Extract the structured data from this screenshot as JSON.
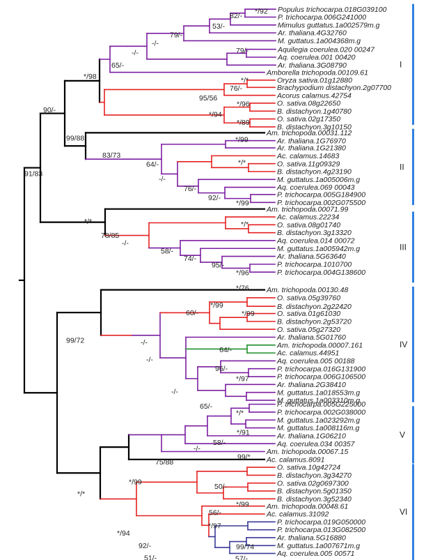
{
  "colors": {
    "backbone": "#000000",
    "eudicot": "#7b1fa2",
    "monocot": "#e52222",
    "amborella": "#1f8f2a",
    "sister": "#3a3a9a",
    "group_bar": "#2f7fe0"
  },
  "leaves": [
    {
      "id": "l0",
      "label": "Populus trichocarpa.018G039100"
    },
    {
      "id": "l1",
      "label": "P. trichocarpa.006G241000"
    },
    {
      "id": "l2",
      "label": "Mimulus guttatus.1a002579m.g"
    },
    {
      "id": "l3",
      "label": "Ar. thaliana.4G32760"
    },
    {
      "id": "l4",
      "label": "M. guttatus.1a004368m.g"
    },
    {
      "id": "l5",
      "label": "Aquilegia coerulea.020 00247"
    },
    {
      "id": "l6",
      "label": "Aq. coerulea.001 00420"
    },
    {
      "id": "l7",
      "label": "Ar. thaliana.3G08790"
    },
    {
      "id": "l8",
      "label": "Amborella trichopoda.00109.61"
    },
    {
      "id": "l9",
      "label": "Oryza sativa.01g12880"
    },
    {
      "id": "l10",
      "label": "Brachypodium distachyon.2g07700"
    },
    {
      "id": "l11",
      "label": "Acorus calamus.42754"
    },
    {
      "id": "l12",
      "label": "O. sativa.08g22650"
    },
    {
      "id": "l13",
      "label": "B. distachyon.1g40780"
    },
    {
      "id": "l14",
      "label": "O. sativa.02g17350"
    },
    {
      "id": "l15",
      "label": "B. distachyon.3g10150"
    },
    {
      "id": "l16",
      "label": "Am. trichopoda.00031.112"
    },
    {
      "id": "l17",
      "label": "Ar. thaliana.1G76970"
    },
    {
      "id": "l18",
      "label": "Ar. thaliana.1G21380"
    },
    {
      "id": "l19",
      "label": "Ac. calamus.14683"
    },
    {
      "id": "l20",
      "label": "O. sativa.11g09329"
    },
    {
      "id": "l21",
      "label": "B. distachyon.4g23190"
    },
    {
      "id": "l22",
      "label": "M. guttatus.1a005006m.g"
    },
    {
      "id": "l23",
      "label": "Aq. coerulea.069 00043"
    },
    {
      "id": "l24",
      "label": "P. trichocarpa.005G184900"
    },
    {
      "id": "l25",
      "label": "P. trichocarpa.002G075500"
    },
    {
      "id": "l26",
      "label": "Am. trichopoda.00071.99"
    },
    {
      "id": "l27",
      "label": "Ac. calamus.22234"
    },
    {
      "id": "l28",
      "label": "O. sativa.08g01740"
    },
    {
      "id": "l29",
      "label": "B. distachyon.3g13320"
    },
    {
      "id": "l30",
      "label": "Aq. coerulea.014 00072"
    },
    {
      "id": "l31",
      "label": "M. guttatus.1a005942m.g"
    },
    {
      "id": "l32",
      "label": "Ar. thaliana.5G63640"
    },
    {
      "id": "l33",
      "label": "P. trichocarpa.1010700"
    },
    {
      "id": "l34",
      "label": "P. trichocarpa.004G138600"
    },
    {
      "id": "l35",
      "label": "Am. trichopoda.00130.48"
    },
    {
      "id": "l36",
      "label": "O. sativa.05g39760"
    },
    {
      "id": "l37",
      "label": "B. distachyon.2g22420"
    },
    {
      "id": "l38",
      "label": "O. sativa.01g61030"
    },
    {
      "id": "l39",
      "label": "B. distachyon.2g53720"
    },
    {
      "id": "l40",
      "label": "O. sativa.05g27320"
    },
    {
      "id": "l41",
      "label": "Ar. thaliana.5G01760"
    },
    {
      "id": "l42",
      "label": "Am. trichopoda.00007.161"
    },
    {
      "id": "l43",
      "label": "Ac. calamus.44951"
    },
    {
      "id": "l44",
      "label": "Aq. coerulea.005 00188"
    },
    {
      "id": "l45",
      "label": "P. trichocarpa.016G131900"
    },
    {
      "id": "l46",
      "label": "P. trichocarpa.006G106500"
    },
    {
      "id": "l47",
      "label": "Ar. thaliana.2G38410"
    },
    {
      "id": "l48",
      "label": "M. guttatus.1a018553m.g"
    },
    {
      "id": "l49",
      "label": "M. guttatus.1a003310m.g"
    },
    {
      "id": "l50",
      "label": "P. trichocarpa.005G225000"
    },
    {
      "id": "l51",
      "label": "P. trichocarpa.002G038000"
    },
    {
      "id": "l52",
      "label": "M. guttatus.1a023292m.g"
    },
    {
      "id": "l53",
      "label": "M. guttatus.1a008116m.g"
    },
    {
      "id": "l54",
      "label": "Ar. thaliana.1G06210"
    },
    {
      "id": "l55",
      "label": "Aq. coerulea.034 00357"
    },
    {
      "id": "l56",
      "label": "Am. trichopoda.00067.15"
    },
    {
      "id": "l57",
      "label": "Ac. calamus.8091"
    },
    {
      "id": "l58",
      "label": "O. sativa.10g42724"
    },
    {
      "id": "l59",
      "label": "B. distachyon.3g34270"
    },
    {
      "id": "l60",
      "label": "O. sativa.02g0697300"
    },
    {
      "id": "l61",
      "label": "B. distachyon.5g01350"
    },
    {
      "id": "l62",
      "label": "B. distachyon.3g52340"
    },
    {
      "id": "l63",
      "label": "Am. trichopoda.00048.61"
    },
    {
      "id": "l64",
      "label": "Ac. calamus.31092"
    },
    {
      "id": "l65",
      "label": "P. trichocarpa.019G050000"
    },
    {
      "id": "l66",
      "label": "P. trichocarpa.013G082500"
    },
    {
      "id": "l67",
      "label": "Ar. thaliana.5G16880"
    },
    {
      "id": "l68",
      "label": "M. guttatus.1a007671m.g"
    },
    {
      "id": "l69",
      "label": "Aq. coerulea.005 00571"
    }
  ],
  "supports": [
    {
      "id": "s0",
      "text": "82/-"
    },
    {
      "id": "s1",
      "text": "*/92"
    },
    {
      "id": "s2",
      "text": "53/-"
    },
    {
      "id": "s3",
      "text": "79/-"
    },
    {
      "id": "s4",
      "text": "-/-"
    },
    {
      "id": "s5",
      "text": "-/-"
    },
    {
      "id": "s6",
      "text": "79/-"
    },
    {
      "id": "s7",
      "text": "65/-"
    },
    {
      "id": "s8",
      "text": "*/98"
    },
    {
      "id": "s9",
      "text": "*/*"
    },
    {
      "id": "s10",
      "text": "76/-"
    },
    {
      "id": "s11",
      "text": "95/56"
    },
    {
      "id": "s12",
      "text": "*/96"
    },
    {
      "id": "s13",
      "text": "*/94"
    },
    {
      "id": "s14",
      "text": "*/89"
    },
    {
      "id": "s15",
      "text": "90/-"
    },
    {
      "id": "s16",
      "text": "99/88"
    },
    {
      "id": "s17",
      "text": "*/99"
    },
    {
      "id": "s18",
      "text": "83/73"
    },
    {
      "id": "s19",
      "text": "*/*"
    },
    {
      "id": "s20",
      "text": "64/-"
    },
    {
      "id": "s21",
      "text": "-/-"
    },
    {
      "id": "s22",
      "text": "76/-"
    },
    {
      "id": "s23",
      "text": "92/-"
    },
    {
      "id": "s24",
      "text": "*/99"
    },
    {
      "id": "s25",
      "text": "91/83"
    },
    {
      "id": "s26",
      "text": "*/*"
    },
    {
      "id": "s27",
      "text": "*/*"
    },
    {
      "id": "s28",
      "text": "78/85"
    },
    {
      "id": "s29",
      "text": "-/-"
    },
    {
      "id": "s30",
      "text": "58/-"
    },
    {
      "id": "s31",
      "text": "74/-"
    },
    {
      "id": "s32",
      "text": "95/-"
    },
    {
      "id": "s33",
      "text": "*/96"
    },
    {
      "id": "s34",
      "text": "*/76"
    },
    {
      "id": "s35",
      "text": "*/99"
    },
    {
      "id": "s36",
      "text": "60/-"
    },
    {
      "id": "s37",
      "text": "*/99"
    },
    {
      "id": "s38",
      "text": "99/72"
    },
    {
      "id": "s39",
      "text": "-/-"
    },
    {
      "id": "s40",
      "text": "-/-"
    },
    {
      "id": "s41",
      "text": "64/-"
    },
    {
      "id": "s42",
      "text": "96/-"
    },
    {
      "id": "s43",
      "text": "*/97"
    },
    {
      "id": "s44",
      "text": "-/-"
    },
    {
      "id": "s45",
      "text": "65/-"
    },
    {
      "id": "s46",
      "text": "*/*"
    },
    {
      "id": "s47",
      "text": "*/91"
    },
    {
      "id": "s48",
      "text": "58/-"
    },
    {
      "id": "s49",
      "text": "-/-"
    },
    {
      "id": "s50",
      "text": "99/*"
    },
    {
      "id": "s51",
      "text": "75/88"
    },
    {
      "id": "s52",
      "text": "*/99"
    },
    {
      "id": "s53",
      "text": "50/-"
    },
    {
      "id": "s54",
      "text": "*/*"
    },
    {
      "id": "s55",
      "text": "*/99"
    },
    {
      "id": "s56",
      "text": "56/-"
    },
    {
      "id": "s57",
      "text": "*/97"
    },
    {
      "id": "s58",
      "text": "*/94"
    },
    {
      "id": "s59",
      "text": "92/-"
    },
    {
      "id": "s60",
      "text": "51/-"
    },
    {
      "id": "s61",
      "text": "99/74"
    },
    {
      "id": "s62",
      "text": "57/-"
    },
    {
      "id": "s63",
      "text": "71/-"
    },
    {
      "id": "s64",
      "text": "-/-"
    }
  ],
  "groups": [
    {
      "id": "g0",
      "label": "I"
    },
    {
      "id": "g1",
      "label": "II"
    },
    {
      "id": "g2",
      "label": "III"
    },
    {
      "id": "g3",
      "label": "IV"
    },
    {
      "id": "g4",
      "label": "V"
    },
    {
      "id": "g5",
      "label": "VI"
    }
  ]
}
